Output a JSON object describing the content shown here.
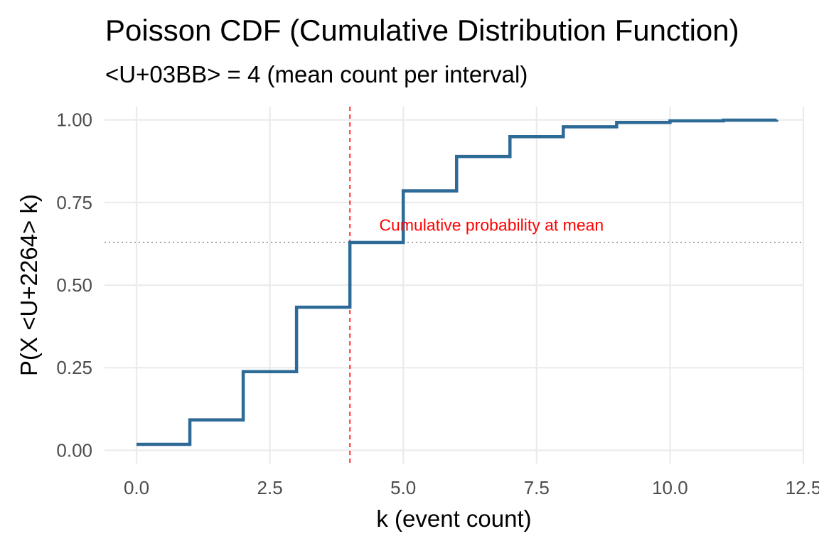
{
  "chart_data": {
    "type": "line",
    "step": true,
    "title": "Poisson CDF (Cumulative Distribution Function)",
    "subtitle": "<U+03BB> = 4 (mean count per interval)",
    "xlabel": "k (event count)",
    "ylabel": "P(X <U+2264> k)",
    "xlim": [
      -0.6,
      12.5
    ],
    "ylim": [
      -0.04,
      1.04
    ],
    "x_ticks": [
      0,
      2.5,
      5,
      7.5,
      10,
      12.5
    ],
    "x_tick_labels": [
      "0.0",
      "2.5",
      "5.0",
      "7.5",
      "10.0",
      "12.5"
    ],
    "y_ticks": [
      0,
      0.25,
      0.5,
      0.75,
      1.0
    ],
    "y_tick_labels": [
      "0.00",
      "0.25",
      "0.50",
      "0.75",
      "1.00"
    ],
    "grid": true,
    "series": [
      {
        "color": "#2E6A96",
        "x": [
          0,
          1,
          2,
          3,
          4,
          5,
          6,
          7,
          8,
          9,
          10,
          11,
          12
        ],
        "y": [
          0.018,
          0.092,
          0.238,
          0.433,
          0.629,
          0.785,
          0.889,
          0.949,
          0.979,
          0.992,
          0.997,
          0.999,
          1.0
        ]
      }
    ],
    "reference_lines": [
      {
        "orientation": "vertical",
        "value": 4,
        "color": "#FF0000",
        "style": "dashed"
      },
      {
        "orientation": "horizontal",
        "value": 0.629,
        "color": "#808080",
        "style": "dotted"
      }
    ],
    "annotations": [
      {
        "text": "Cumulative probability at mean",
        "x": 4.55,
        "y": 0.665,
        "color": "#FF0000"
      }
    ]
  }
}
